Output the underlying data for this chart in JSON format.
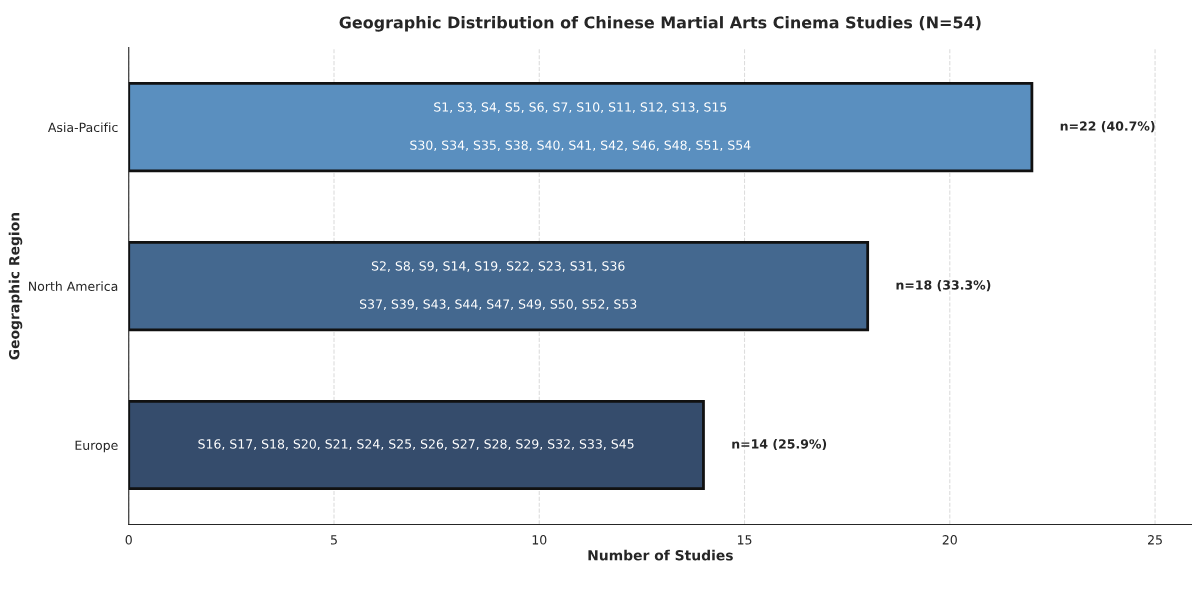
{
  "chart_data": {
    "type": "bar",
    "orientation": "horizontal",
    "title": "Geographic Distribution of Chinese Martial Arts Cinema Studies (N=54)",
    "xlabel": "Number of Studies",
    "ylabel": "Geographic Region",
    "categories": [
      "Asia-Pacific",
      "North America",
      "Europe"
    ],
    "values": [
      22,
      18,
      14
    ],
    "colors": [
      "#5a8fbf",
      "#44688f",
      "#354c6c"
    ],
    "value_labels": [
      "n=22 (40.7%)",
      "n=18 (33.3%)",
      "n=14 (25.9%)"
    ],
    "xlim": [
      0,
      25.9
    ],
    "xticks": [
      0,
      5,
      10,
      15,
      20,
      25
    ],
    "grid": "x",
    "annotations": [
      "S1, S3, S4, S5, S6, S7, S10, S11, S12, S13, S15",
      "S30, S34, S35, S38, S40, S41, S42, S46, S48, S51, S54",
      "S2, S8, S9, S14, S19, S22, S23, S31, S36",
      "S37, S39, S43, S44, S47, S49, S50, S52, S53",
      "S16, S17, S18, S20, S21, S24, S25, S26, S27, S28, S29, S32, S33, S45"
    ]
  }
}
